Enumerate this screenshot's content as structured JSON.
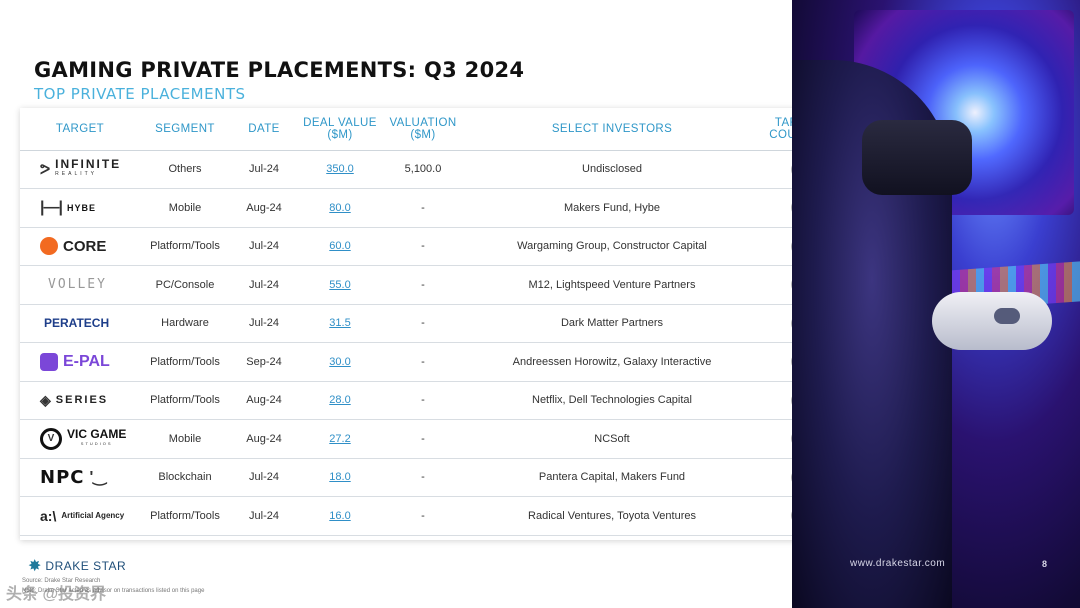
{
  "title": "GAMING PRIVATE PLACEMENTS: Q3 2024",
  "subtitle": "TOP PRIVATE PLACEMENTS",
  "columns": {
    "target": "TARGET",
    "segment": "SEGMENT",
    "date": "DATE",
    "deal_value": "DEAL VALUE ($M)",
    "valuation": "VALUATION ($M)",
    "investors": "SELECT INVESTORS",
    "country": "TARGET COUNTRY"
  },
  "rows": [
    {
      "logo_text": "INFINITE",
      "logo_sub": "REALITY",
      "segment": "Others",
      "date": "Jul-24",
      "deal_value": "350.0",
      "valuation": "5,100.0",
      "investors": "Undisclosed",
      "flag": "us"
    },
    {
      "logo_text": "HYBE",
      "segment": "Mobile",
      "date": "Aug-24",
      "deal_value": "80.0",
      "valuation": "-",
      "investors": "Makers Fund, Hybe",
      "flag": "kr"
    },
    {
      "logo_text": "CORE",
      "segment": "Platform/Tools",
      "date": "Jul-24",
      "deal_value": "60.0",
      "valuation": "-",
      "investors": "Wargaming Group, Constructor Capital",
      "flag": "nl"
    },
    {
      "logo_text": "VOLLEY",
      "segment": "PC/Console",
      "date": "Jul-24",
      "deal_value": "55.0",
      "valuation": "-",
      "investors": "M12, Lightspeed Venture Partners",
      "flag": "us"
    },
    {
      "logo_text": "PERATECH",
      "segment": "Hardware",
      "date": "Jul-24",
      "deal_value": "31.5",
      "valuation": "-",
      "investors": "Dark Matter Partners",
      "flag": "gb"
    },
    {
      "logo_text": "E-PAL",
      "segment": "Platform/Tools",
      "date": "Sep-24",
      "deal_value": "30.0",
      "valuation": "-",
      "investors": "Andreessen Horowitz, Galaxy Interactive",
      "flag": "us"
    },
    {
      "logo_text": "SERIES",
      "segment": "Platform/Tools",
      "date": "Aug-24",
      "deal_value": "28.0",
      "valuation": "-",
      "investors": "Netflix, Dell Technologies Capital",
      "flag": "us"
    },
    {
      "logo_text": "VIC GAME",
      "logo_sub": "STUDIOS",
      "segment": "Mobile",
      "date": "Aug-24",
      "deal_value": "27.2",
      "valuation": "-",
      "investors": "NCSoft",
      "flag": "kr"
    },
    {
      "logo_text": "NPC",
      "segment": "Blockchain",
      "date": "Jul-24",
      "deal_value": "18.0",
      "valuation": "-",
      "investors": "Pantera Capital, Makers Fund",
      "flag": "us"
    },
    {
      "logo_text": "Artificial Agency",
      "logo_mark": "a:\\",
      "segment": "Platform/Tools",
      "date": "Jul-24",
      "deal_value": "16.0",
      "valuation": "-",
      "investors": "Radical Ventures, Toyota Ventures",
      "flag": "ca"
    }
  ],
  "footer": {
    "brand": "DRAKE STAR",
    "note1": "Source: Drake Star Research",
    "note2": "Note: Drake Star acted as advisor on transactions listed on this page",
    "url": "www.drakestar.com",
    "page_number": "8",
    "watermark": "头条 @投资界"
  },
  "colors": {
    "accent": "#2f97c8",
    "subtitle": "#4ab1dc",
    "link": "#2f8fc7"
  }
}
